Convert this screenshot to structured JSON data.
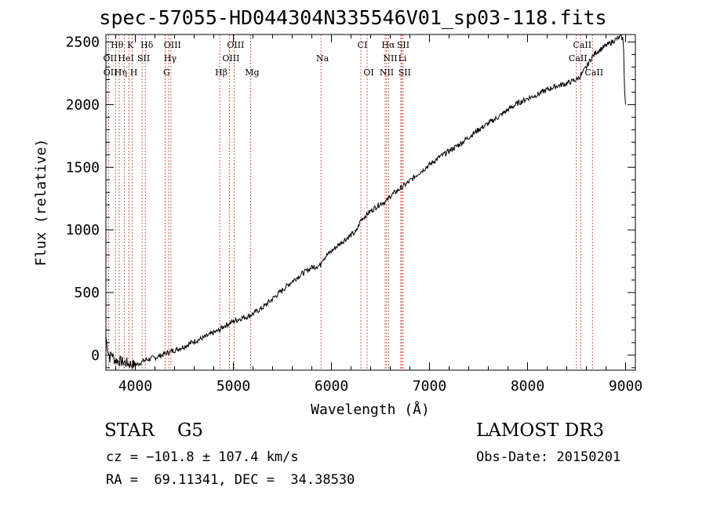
{
  "chart_data": {
    "type": "line",
    "title": "spec-57055-HD044304N335546V01_sp03-118.fits",
    "xlabel": "Wavelength (Å)",
    "ylabel": "Flux (relative)",
    "xlim": [
      3700,
      9100
    ],
    "ylim": [
      -120,
      2560
    ],
    "x_ticks": [
      4000,
      5000,
      6000,
      7000,
      8000,
      9000
    ],
    "y_ticks": [
      0,
      500,
      1000,
      1500,
      2000,
      2500
    ],
    "x_tick_labels": [
      "4000",
      "5000",
      "6000",
      "7000",
      "8000",
      "9000"
    ],
    "y_tick_labels": [
      "0",
      "500",
      "1000",
      "1500",
      "2000",
      "2500"
    ],
    "series": [
      {
        "name": "flux",
        "x": [
          3700,
          3720,
          3740,
          3760,
          3780,
          3800,
          3850,
          3900,
          3950,
          4000,
          4050,
          4100,
          4200,
          4300,
          4400,
          4500,
          4600,
          4700,
          4800,
          4860,
          4900,
          5000,
          5100,
          5150,
          5200,
          5300,
          5400,
          5500,
          5600,
          5700,
          5800,
          5890,
          5900,
          6000,
          6100,
          6200,
          6250,
          6300,
          6400,
          6500,
          6562,
          6600,
          6700,
          6800,
          6900,
          7000,
          7100,
          7200,
          7300,
          7400,
          7500,
          7600,
          7700,
          7800,
          7900,
          8000,
          8100,
          8200,
          8300,
          8400,
          8500,
          8550,
          8600,
          8650,
          8700,
          8800,
          8900,
          8950,
          8970,
          8980,
          8990,
          9000
        ],
        "y": [
          150,
          40,
          -20,
          20,
          -30,
          -40,
          -50,
          -60,
          -70,
          -80,
          -60,
          -40,
          -20,
          10,
          40,
          70,
          110,
          140,
          180,
          200,
          230,
          270,
          300,
          310,
          330,
          380,
          450,
          520,
          590,
          650,
          700,
          720,
          760,
          830,
          900,
          960,
          980,
          1080,
          1150,
          1210,
          1230,
          1270,
          1330,
          1390,
          1460,
          1520,
          1580,
          1630,
          1680,
          1740,
          1800,
          1850,
          1900,
          1960,
          2010,
          2050,
          2080,
          2120,
          2150,
          2170,
          2200,
          2240,
          2300,
          2370,
          2420,
          2470,
          2520,
          2540,
          2530,
          2450,
          2100,
          2000
        ]
      }
    ],
    "spectral_lines_top": [
      {
        "label": "Hθ",
        "x": 3798,
        "row": 0
      },
      {
        "label": "K",
        "x": 3934,
        "row": 0
      },
      {
        "label": "Hδ",
        "x": 4102,
        "row": 0
      },
      {
        "label": "OIII",
        "x": 4363,
        "row": 0
      },
      {
        "label": "OIII",
        "x": 5007,
        "row": 0
      },
      {
        "label": "Na",
        "x": 5893,
        "row": 1
      },
      {
        "label": "CI",
        "x": 6300,
        "row": 0
      },
      {
        "label": "Hα",
        "x": 6563,
        "row": 0
      },
      {
        "label": "SII",
        "x": 6716,
        "row": 0
      },
      {
        "label": "CaII",
        "x": 8542,
        "row": 0
      },
      {
        "label": "OII",
        "x": 3727,
        "row": 1
      },
      {
        "label": "HeI",
        "x": 3889,
        "row": 1
      },
      {
        "label": "SII",
        "x": 4069,
        "row": 1
      },
      {
        "label": "Hγ",
        "x": 4340,
        "row": 1
      },
      {
        "label": "OIII",
        "x": 4959,
        "row": 1
      },
      {
        "label": "NII",
        "x": 6584,
        "row": 1
      },
      {
        "label": "Li",
        "x": 6708,
        "row": 1
      },
      {
        "label": "CaII",
        "x": 8498,
        "row": 1
      },
      {
        "label": "OII",
        "x": 3729,
        "row": 2
      },
      {
        "label": "Hη",
        "x": 3835,
        "row": 2
      },
      {
        "label": "H",
        "x": 3968,
        "row": 2
      },
      {
        "label": "G",
        "x": 4304,
        "row": 2
      },
      {
        "label": "Hβ",
        "x": 4861,
        "row": 2
      },
      {
        "label": "Mg",
        "x": 5175,
        "row": 2
      },
      {
        "label": "OI",
        "x": 6364,
        "row": 2
      },
      {
        "label": "NII",
        "x": 6548,
        "row": 2
      },
      {
        "label": "SII",
        "x": 6731,
        "row": 2
      },
      {
        "label": "CaII",
        "x": 8662,
        "row": 2
      }
    ],
    "line_markers": [
      3727,
      3798,
      3835,
      3889,
      3934,
      3968,
      4069,
      4102,
      4304,
      4340,
      4363,
      4861,
      4959,
      5007,
      5175,
      5893,
      6300,
      6364,
      6548,
      6563,
      6584,
      6708,
      6716,
      6731,
      8498,
      8542,
      8662
    ]
  },
  "info": {
    "object_class": "STAR    G5",
    "survey": "LAMOST DR3",
    "cz": "cz = −101.8 ± 107.4 km/s",
    "obs_date": "Obs-Date: 20150201",
    "radec": "RA =  69.11341, DEC =  34.38530"
  }
}
